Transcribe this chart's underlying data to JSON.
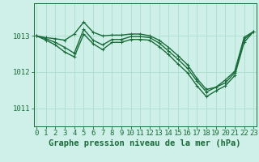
{
  "background_color": "#cef0e8",
  "grid_color": "#aaddcc",
  "line_color": "#1a6b3a",
  "title": "Graphe pression niveau de la mer (hPa)",
  "yticks": [
    1011,
    1012,
    1013
  ],
  "ylim": [
    1010.5,
    1013.9
  ],
  "xlim": [
    -0.3,
    23.3
  ],
  "series1": {
    "x": [
      0,
      1,
      2,
      3,
      4,
      5,
      6,
      7,
      8,
      9,
      10,
      11,
      12,
      13,
      14,
      15,
      16,
      17,
      18,
      19,
      20,
      21,
      22,
      23
    ],
    "y": [
      1013.0,
      1012.95,
      1012.92,
      1012.88,
      1013.05,
      1013.38,
      1013.1,
      1013.0,
      1013.02,
      1013.02,
      1013.05,
      1013.05,
      1013.0,
      1012.88,
      1012.68,
      1012.45,
      1012.2,
      1011.82,
      1011.52,
      1011.58,
      1011.78,
      1012.02,
      1012.96,
      1013.12
    ]
  },
  "series2": {
    "x": [
      0,
      1,
      2,
      3,
      4,
      5,
      6,
      7,
      8,
      9,
      10,
      11,
      12,
      13,
      14,
      15,
      16,
      17,
      18,
      19,
      20,
      21,
      22,
      23
    ],
    "y": [
      1013.0,
      1012.92,
      1012.82,
      1012.68,
      1012.52,
      1013.18,
      1012.88,
      1012.75,
      1012.9,
      1012.9,
      1012.98,
      1012.98,
      1012.95,
      1012.8,
      1012.58,
      1012.35,
      1012.1,
      1011.75,
      1011.45,
      1011.58,
      1011.7,
      1011.98,
      1012.9,
      1013.12
    ]
  },
  "series3": {
    "x": [
      0,
      1,
      2,
      3,
      4,
      5,
      6,
      7,
      8,
      9,
      10,
      11,
      12,
      13,
      14,
      15,
      16,
      17,
      18,
      19,
      20,
      21,
      22,
      23
    ],
    "y": [
      1013.0,
      1012.88,
      1012.75,
      1012.55,
      1012.42,
      1013.05,
      1012.78,
      1012.62,
      1012.82,
      1012.82,
      1012.9,
      1012.9,
      1012.88,
      1012.7,
      1012.48,
      1012.22,
      1011.98,
      1011.62,
      1011.32,
      1011.48,
      1011.62,
      1011.9,
      1012.82,
      1013.12
    ]
  },
  "marker": "+",
  "markersize": 3.5,
  "linewidth": 1.0,
  "title_fontsize": 7.5,
  "tick_fontsize": 6.5
}
